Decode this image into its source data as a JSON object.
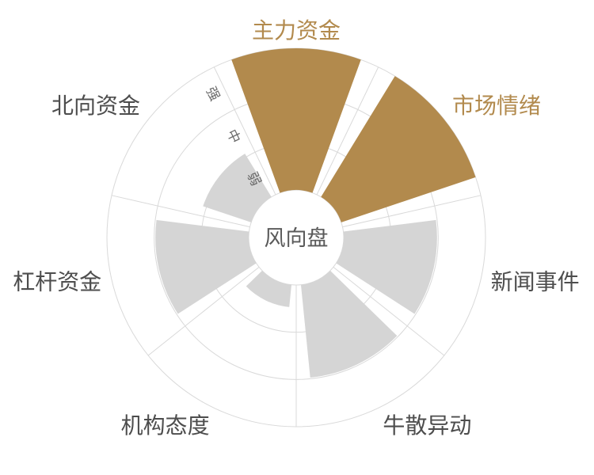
{
  "chart_data": {
    "type": "bar",
    "subtype": "polar-wind-dial",
    "title": "风向盘",
    "categories": [
      "主力资金",
      "市场情绪",
      "新闻事件",
      "牛散异动",
      "机构态度",
      "杠杆资金",
      "北向资金"
    ],
    "values": [
      3,
      3,
      2,
      2,
      0.5,
      2,
      1.1
    ],
    "highlighted": [
      true,
      true,
      false,
      false,
      false,
      false,
      false
    ],
    "value_axis": {
      "min": 0,
      "max": 3,
      "ring_labels": [
        "弱",
        "中",
        "强"
      ]
    },
    "direction": "clockwise",
    "start_category_angle_deg": 0,
    "legend": "none",
    "grid": "on",
    "colors": {
      "highlight": "#b28a4d",
      "normal": "#d5d5d5",
      "grid": "#d9d9d9",
      "category_label": "#4d4d4d",
      "category_label_highlight": "#b28a4d",
      "center_label": "#5a5a5a",
      "ring_label": "#6b6b6b",
      "background": "#ffffff"
    }
  }
}
